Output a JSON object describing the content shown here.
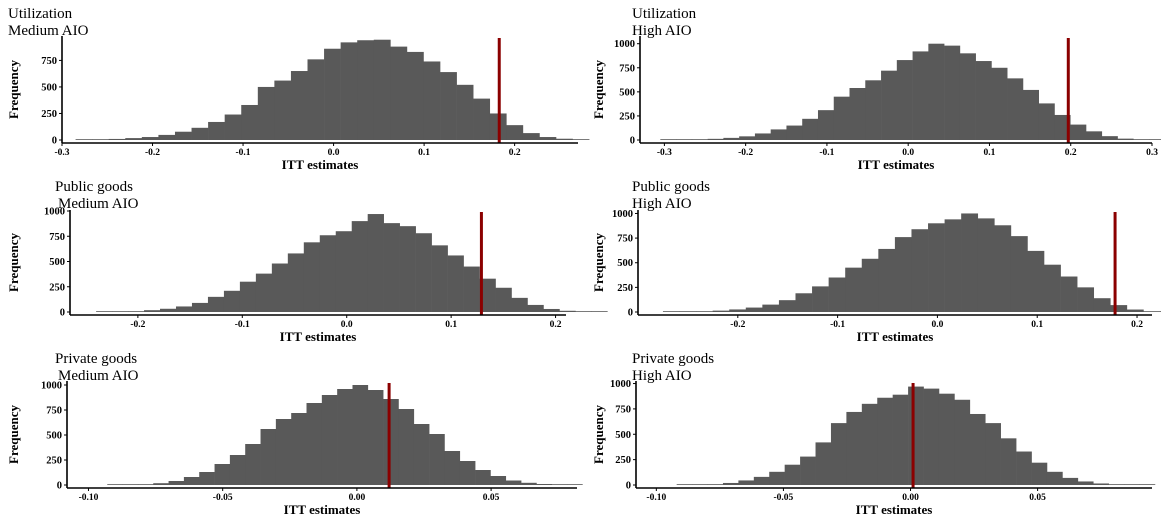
{
  "chart_data": [
    {
      "type": "bar",
      "subtype": "histogram",
      "title": "Utilization",
      "subtitle": "Medium AIO",
      "xlabel": "ITT estimates",
      "ylabel": "Frequency",
      "xlim": [
        -0.3,
        0.27
      ],
      "ylim": [
        0,
        980
      ],
      "xticks": [
        -0.3,
        -0.2,
        -0.1,
        0.0,
        0.1,
        0.2
      ],
      "xtick_labels": [
        "-0.3",
        "-0.2",
        "-0.1",
        "0.0",
        "0.1",
        "0.2"
      ],
      "yticks": [
        0,
        250,
        500,
        750
      ],
      "ytick_labels": [
        "0",
        "250",
        "500",
        "750"
      ],
      "bins_start": -0.285,
      "bin_width": 0.0183,
      "values": [
        1,
        3,
        10,
        18,
        28,
        48,
        78,
        115,
        170,
        240,
        330,
        500,
        560,
        650,
        760,
        860,
        920,
        940,
        945,
        880,
        830,
        740,
        640,
        520,
        390,
        250,
        140,
        65,
        28,
        12,
        5
      ],
      "fill_color": "#595959",
      "reference_line": {
        "x": 0.183,
        "color": "#8b0000"
      }
    },
    {
      "type": "bar",
      "subtype": "histogram",
      "title": "Utilization",
      "subtitle": "High AIO",
      "xlabel": "ITT estimates",
      "ylabel": "Frequency",
      "xlim": [
        -0.33,
        0.3
      ],
      "ylim": [
        0,
        1080
      ],
      "xticks": [
        -0.3,
        -0.2,
        -0.1,
        0.0,
        0.1,
        0.2,
        0.3
      ],
      "xtick_labels": [
        "-0.3",
        "-0.2",
        "-0.1",
        "0.0",
        "0.1",
        "0.2",
        "0.3"
      ],
      "yticks": [
        0,
        250,
        500,
        750,
        1000
      ],
      "ytick_labels": [
        "0",
        "250",
        "500",
        "750",
        "1000"
      ],
      "bins_start": -0.305,
      "bin_width": 0.0194,
      "values": [
        1,
        2,
        6,
        12,
        22,
        38,
        68,
        110,
        150,
        220,
        310,
        450,
        540,
        620,
        720,
        830,
        920,
        1000,
        980,
        900,
        820,
        750,
        640,
        520,
        380,
        260,
        160,
        90,
        40,
        14,
        5,
        2
      ],
      "fill_color": "#595959",
      "reference_line": {
        "x": 0.197,
        "color": "#8b0000"
      }
    },
    {
      "type": "bar",
      "subtype": "histogram",
      "title": "Public goods",
      "subtitle": "Medium AIO",
      "xlabel": "ITT estimates",
      "ylabel": "Frequency",
      "xlim": [
        -0.265,
        0.21
      ],
      "ylim": [
        0,
        1010
      ],
      "xticks": [
        -0.2,
        -0.1,
        0.0,
        0.1,
        0.2
      ],
      "xtick_labels": [
        "-0.2",
        "-0.1",
        "0.0",
        "0.1",
        "0.2"
      ],
      "yticks": [
        0,
        250,
        500,
        750,
        1000
      ],
      "ytick_labels": [
        "0",
        "250",
        "500",
        "750",
        "1000"
      ],
      "bins_start": -0.24,
      "bin_width": 0.0153,
      "values": [
        1,
        3,
        8,
        18,
        32,
        55,
        90,
        150,
        210,
        300,
        380,
        480,
        580,
        690,
        760,
        800,
        900,
        970,
        880,
        850,
        780,
        660,
        560,
        450,
        330,
        240,
        140,
        70,
        30,
        12,
        4,
        1
      ],
      "fill_color": "#595959",
      "reference_line": {
        "x": 0.129,
        "color": "#8b0000"
      }
    },
    {
      "type": "bar",
      "subtype": "histogram",
      "title": "Public goods",
      "subtitle": "High AIO",
      "xlabel": "ITT estimates",
      "ylabel": "Frequency",
      "xlim": [
        -0.3,
        0.215
      ],
      "ylim": [
        0,
        1035
      ],
      "xticks": [
        -0.2,
        -0.1,
        0.0,
        0.1,
        0.2
      ],
      "xtick_labels": [
        "-0.2",
        "-0.1",
        "0.0",
        "0.1",
        "0.2"
      ],
      "yticks": [
        0,
        250,
        500,
        750,
        1000
      ],
      "ytick_labels": [
        "0",
        "250",
        "500",
        "750",
        "1000"
      ],
      "bins_start": -0.275,
      "bin_width": 0.0166,
      "values": [
        1,
        2,
        6,
        14,
        26,
        45,
        75,
        120,
        190,
        260,
        350,
        450,
        540,
        640,
        760,
        840,
        900,
        940,
        1000,
        950,
        880,
        770,
        620,
        480,
        360,
        250,
        140,
        70,
        25,
        8,
        2
      ],
      "fill_color": "#595959",
      "reference_line": {
        "x": 0.178,
        "color": "#8b0000"
      }
    },
    {
      "type": "bar",
      "subtype": "histogram",
      "title": "Private goods",
      "subtitle": "Medium AIO",
      "xlabel": "ITT estimates",
      "ylabel": "Frequency",
      "xlim": [
        -0.108,
        0.082
      ],
      "ylim": [
        0,
        1040
      ],
      "xticks": [
        -0.1,
        -0.05,
        0.0,
        0.05
      ],
      "xtick_labels": [
        "-0.10",
        "-0.05",
        "0.00",
        "0.05"
      ],
      "yticks": [
        0,
        250,
        500,
        750,
        1000
      ],
      "ytick_labels": [
        "0",
        "250",
        "500",
        "750",
        "1000"
      ],
      "bins_start": -0.093,
      "bin_width": 0.00571,
      "values": [
        1,
        3,
        8,
        18,
        40,
        80,
        130,
        210,
        300,
        410,
        560,
        660,
        720,
        820,
        900,
        960,
        1000,
        950,
        860,
        760,
        610,
        510,
        340,
        240,
        150,
        90,
        45,
        22,
        10,
        4,
        1
      ],
      "fill_color": "#595959",
      "reference_line": {
        "x": 0.012,
        "color": "#8b0000"
      }
    },
    {
      "type": "bar",
      "subtype": "histogram",
      "title": "Private goods",
      "subtitle": "High AIO",
      "xlabel": "ITT estimates",
      "ylabel": "Frequency",
      "xlim": [
        -0.108,
        0.095
      ],
      "ylim": [
        0,
        1025
      ],
      "xticks": [
        -0.1,
        -0.05,
        0.0,
        0.05
      ],
      "xtick_labels": [
        "-0.10",
        "-0.05",
        "0.00",
        "0.05"
      ],
      "yticks": [
        0,
        250,
        500,
        750,
        1000
      ],
      "ytick_labels": [
        "0",
        "250",
        "500",
        "750",
        "1000"
      ],
      "bins_start": -0.092,
      "bin_width": 0.00607,
      "values": [
        1,
        3,
        8,
        20,
        45,
        80,
        130,
        200,
        280,
        420,
        610,
        720,
        800,
        860,
        890,
        970,
        950,
        900,
        840,
        700,
        610,
        460,
        330,
        220,
        130,
        70,
        35,
        15,
        6,
        2,
        1
      ],
      "fill_color": "#595959",
      "reference_line": {
        "x": 0.001,
        "color": "#8b0000"
      }
    }
  ]
}
